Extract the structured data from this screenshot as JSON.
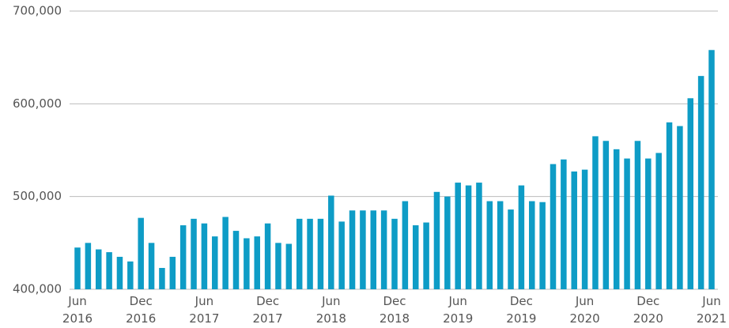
{
  "chart_data": {
    "type": "bar",
    "categories": [
      "Jun 2016",
      null,
      null,
      null,
      null,
      null,
      "Dec 2016",
      null,
      null,
      null,
      null,
      null,
      "Jun 2017",
      null,
      null,
      null,
      null,
      null,
      "Dec 2017",
      null,
      null,
      null,
      null,
      null,
      "Jun 2018",
      null,
      null,
      null,
      null,
      null,
      "Dec 2018",
      null,
      null,
      null,
      null,
      null,
      "Jun 2019",
      null,
      null,
      null,
      null,
      null,
      "Dec 2019",
      null,
      null,
      null,
      null,
      null,
      "Jun 2020",
      null,
      null,
      null,
      null,
      null,
      "Dec 2020",
      null,
      null,
      null,
      null,
      null,
      "Jun 2021"
    ],
    "values": [
      445000,
      450000,
      443000,
      440000,
      435000,
      430000,
      477000,
      450000,
      423000,
      435000,
      469000,
      476000,
      471000,
      457000,
      478000,
      463000,
      455000,
      457000,
      471000,
      450000,
      449000,
      476000,
      476000,
      476000,
      501000,
      473000,
      485000,
      485000,
      485000,
      485000,
      476000,
      495000,
      469000,
      472000,
      505000,
      500000,
      515000,
      512000,
      515000,
      495000,
      495000,
      486000,
      512000,
      495000,
      494000,
      535000,
      540000,
      527000,
      529000,
      565000,
      560000,
      551000,
      541000,
      560000,
      541000,
      547000,
      580000,
      576000,
      606000,
      630000,
      658000
    ],
    "color": "#0e9cc6",
    "ylim": [
      400000,
      700000
    ],
    "yticks": [
      {
        "value": 400000,
        "label": "400,000"
      },
      {
        "value": 500000,
        "label": "500,000"
      },
      {
        "value": 600000,
        "label": "600,000"
      },
      {
        "value": 700000,
        "label": "700,000"
      }
    ],
    "grid": true
  }
}
